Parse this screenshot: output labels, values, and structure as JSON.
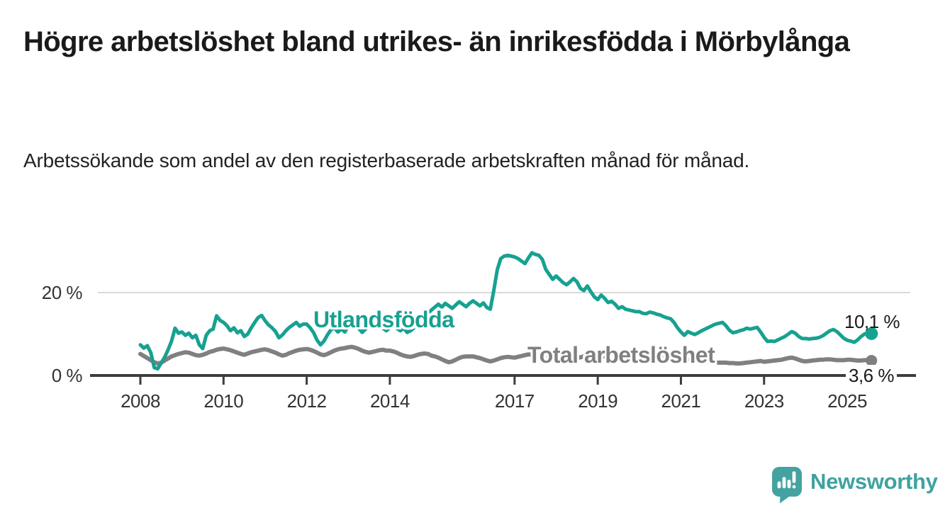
{
  "header": {
    "title": "Högre arbetslöshet bland utrikes- än inrikesfödda i Mörbylånga",
    "subtitle": "Arbetssökande som andel av den registerbaserade arbetskraften månad för månad."
  },
  "branding": {
    "name": "Newsworthy",
    "color": "#3fa2a0",
    "icon": "newsworthy-speech-bubble-bar-chart-icon"
  },
  "chart_data": {
    "type": "line",
    "title": "Högre arbetslöshet bland utrikes- än inrikesfödda i Mörbylånga",
    "unit": "%",
    "x_unit": "month",
    "x_range": [
      "2008-01",
      "2025-08"
    ],
    "x_ticks": [
      2008,
      2010,
      2012,
      2014,
      2017,
      2019,
      2021,
      2023,
      2025
    ],
    "y_ticks": [
      {
        "value": 20,
        "label": "20 %"
      },
      {
        "value": 0,
        "label": "0 %"
      }
    ],
    "ylim": [
      0,
      34
    ],
    "grid": "horizontal-20-only",
    "legend_position": "inline-labels",
    "colors": {
      "axis": "#3d3d3d",
      "gridline": "#d9d9d9",
      "tick_text": "#333333"
    },
    "series": [
      {
        "name": "Utlandsfödda",
        "color": "#17a191",
        "end_label": "10,1 %",
        "end_value": 10.1,
        "values": [
          7.4,
          6.6,
          7.2,
          5.5,
          1.9,
          1.6,
          3.0,
          4.4,
          6.2,
          8.3,
          11.4,
          10.2,
          10.5,
          9.7,
          10.2,
          9.1,
          9.7,
          7.4,
          6.5,
          9.7,
          10.8,
          11.2,
          14.4,
          13.3,
          12.8,
          12.0,
          10.8,
          11.5,
          10.3,
          10.8,
          9.4,
          10.0,
          11.5,
          12.8,
          14.0,
          14.5,
          13.2,
          12.2,
          11.5,
          10.6,
          9.1,
          9.8,
          10.8,
          11.6,
          12.2,
          12.8,
          11.9,
          12.4,
          12.4,
          11.5,
          10.3,
          8.5,
          7.4,
          8.3,
          9.8,
          11.0,
          11.5,
          10.5,
          11.2,
          10.5,
          12.0,
          12.8,
          12.2,
          11.4,
          10.4,
          11.2,
          12.6,
          13.4,
          12.8,
          12.0,
          11.4,
          10.8,
          11.5,
          12.2,
          11.4,
          10.8,
          11.4,
          10.4,
          10.8,
          11.5,
          12.4,
          13.2,
          14.2,
          15.0,
          15.8,
          16.5,
          17.2,
          16.5,
          17.4,
          16.8,
          16.2,
          17.0,
          17.8,
          17.2,
          16.6,
          17.4,
          18.0,
          17.4,
          16.8,
          17.5,
          16.4,
          16.0,
          20.5,
          25.5,
          28.2,
          28.8,
          29.0,
          28.8,
          28.6,
          28.2,
          27.6,
          27.0,
          28.4,
          29.6,
          29.2,
          29.0,
          28.0,
          25.6,
          24.4,
          23.2,
          24.0,
          23.2,
          22.4,
          21.9,
          22.6,
          23.4,
          22.6,
          21.0,
          20.5,
          21.6,
          20.2,
          19.0,
          18.3,
          19.4,
          18.6,
          17.6,
          17.9,
          17.2,
          16.2,
          16.6,
          16.0,
          15.8,
          15.6,
          15.4,
          15.4,
          15.0,
          14.9,
          15.3,
          15.1,
          14.8,
          14.6,
          14.2,
          13.9,
          13.7,
          12.8,
          11.5,
          10.5,
          9.7,
          10.6,
          10.2,
          9.9,
          10.3,
          10.8,
          11.2,
          11.6,
          12.0,
          12.4,
          12.6,
          12.8,
          12.0,
          10.9,
          10.3,
          10.5,
          10.8,
          11.0,
          11.4,
          11.2,
          11.4,
          11.6,
          10.5,
          9.2,
          8.2,
          8.3,
          8.2,
          8.6,
          9.0,
          9.4,
          10.0,
          10.6,
          10.2,
          9.4,
          8.9,
          8.9,
          8.8,
          8.9,
          9.0,
          9.2,
          9.6,
          10.2,
          10.8,
          11.1,
          10.6,
          9.8,
          9.0,
          8.5,
          8.3,
          8.0,
          8.6,
          9.4,
          10.0,
          10.3,
          10.1
        ]
      },
      {
        "name": "Total arbetslöshet",
        "color": "#808083",
        "end_label": "3,6 %",
        "end_value": 3.6,
        "values": [
          5.2,
          4.7,
          4.2,
          3.7,
          3.2,
          2.9,
          3.1,
          3.6,
          4.1,
          4.6,
          4.9,
          5.2,
          5.4,
          5.6,
          5.5,
          5.2,
          4.9,
          4.8,
          5.0,
          5.3,
          5.7,
          5.9,
          6.2,
          6.4,
          6.5,
          6.3,
          6.1,
          5.8,
          5.5,
          5.2,
          5.0,
          5.3,
          5.6,
          5.8,
          6.0,
          6.2,
          6.3,
          6.1,
          5.8,
          5.5,
          5.1,
          4.8,
          5.0,
          5.4,
          5.7,
          6.0,
          6.2,
          6.3,
          6.4,
          6.2,
          5.9,
          5.5,
          5.1,
          4.9,
          5.2,
          5.6,
          6.0,
          6.3,
          6.5,
          6.6,
          6.8,
          6.9,
          6.7,
          6.4,
          6.0,
          5.7,
          5.5,
          5.7,
          5.9,
          6.1,
          6.2,
          6.0,
          6.0,
          5.8,
          5.5,
          5.1,
          4.8,
          4.6,
          4.5,
          4.7,
          5.0,
          5.2,
          5.3,
          5.2,
          4.8,
          4.6,
          4.3,
          3.9,
          3.5,
          3.2,
          3.4,
          3.8,
          4.2,
          4.5,
          4.6,
          4.6,
          4.6,
          4.4,
          4.2,
          3.9,
          3.6,
          3.4,
          3.6,
          3.9,
          4.2,
          4.4,
          4.5,
          4.4,
          4.3,
          4.5,
          4.7,
          4.9,
          5.1,
          5.0,
          4.8,
          4.6,
          4.5,
          4.6,
          4.8,
          5.0,
          5.2,
          5.1,
          4.9,
          4.6,
          4.3,
          4.1,
          4.2,
          4.4,
          4.6,
          4.7,
          4.8,
          4.9,
          4.9,
          4.8,
          4.6,
          4.4,
          4.1,
          3.9,
          4.0,
          4.2,
          4.4,
          4.5,
          4.6,
          4.7,
          4.8,
          4.9,
          5.1,
          5.3,
          5.2,
          5.0,
          4.8,
          4.7,
          4.6,
          4.5,
          4.4,
          4.3,
          4.2,
          4.1,
          4.0,
          3.8,
          3.6,
          3.4,
          3.3,
          3.3,
          3.2,
          3.2,
          3.1,
          3.1,
          3.1,
          3.1,
          3.0,
          3.0,
          2.9,
          2.9,
          3.0,
          3.1,
          3.2,
          3.3,
          3.4,
          3.5,
          3.3,
          3.4,
          3.5,
          3.6,
          3.7,
          3.8,
          4.0,
          4.2,
          4.3,
          4.1,
          3.8,
          3.5,
          3.4,
          3.5,
          3.6,
          3.7,
          3.8,
          3.8,
          3.9,
          3.9,
          3.8,
          3.7,
          3.7,
          3.7,
          3.8,
          3.8,
          3.7,
          3.6,
          3.6,
          3.7,
          3.7,
          3.6
        ]
      }
    ]
  }
}
